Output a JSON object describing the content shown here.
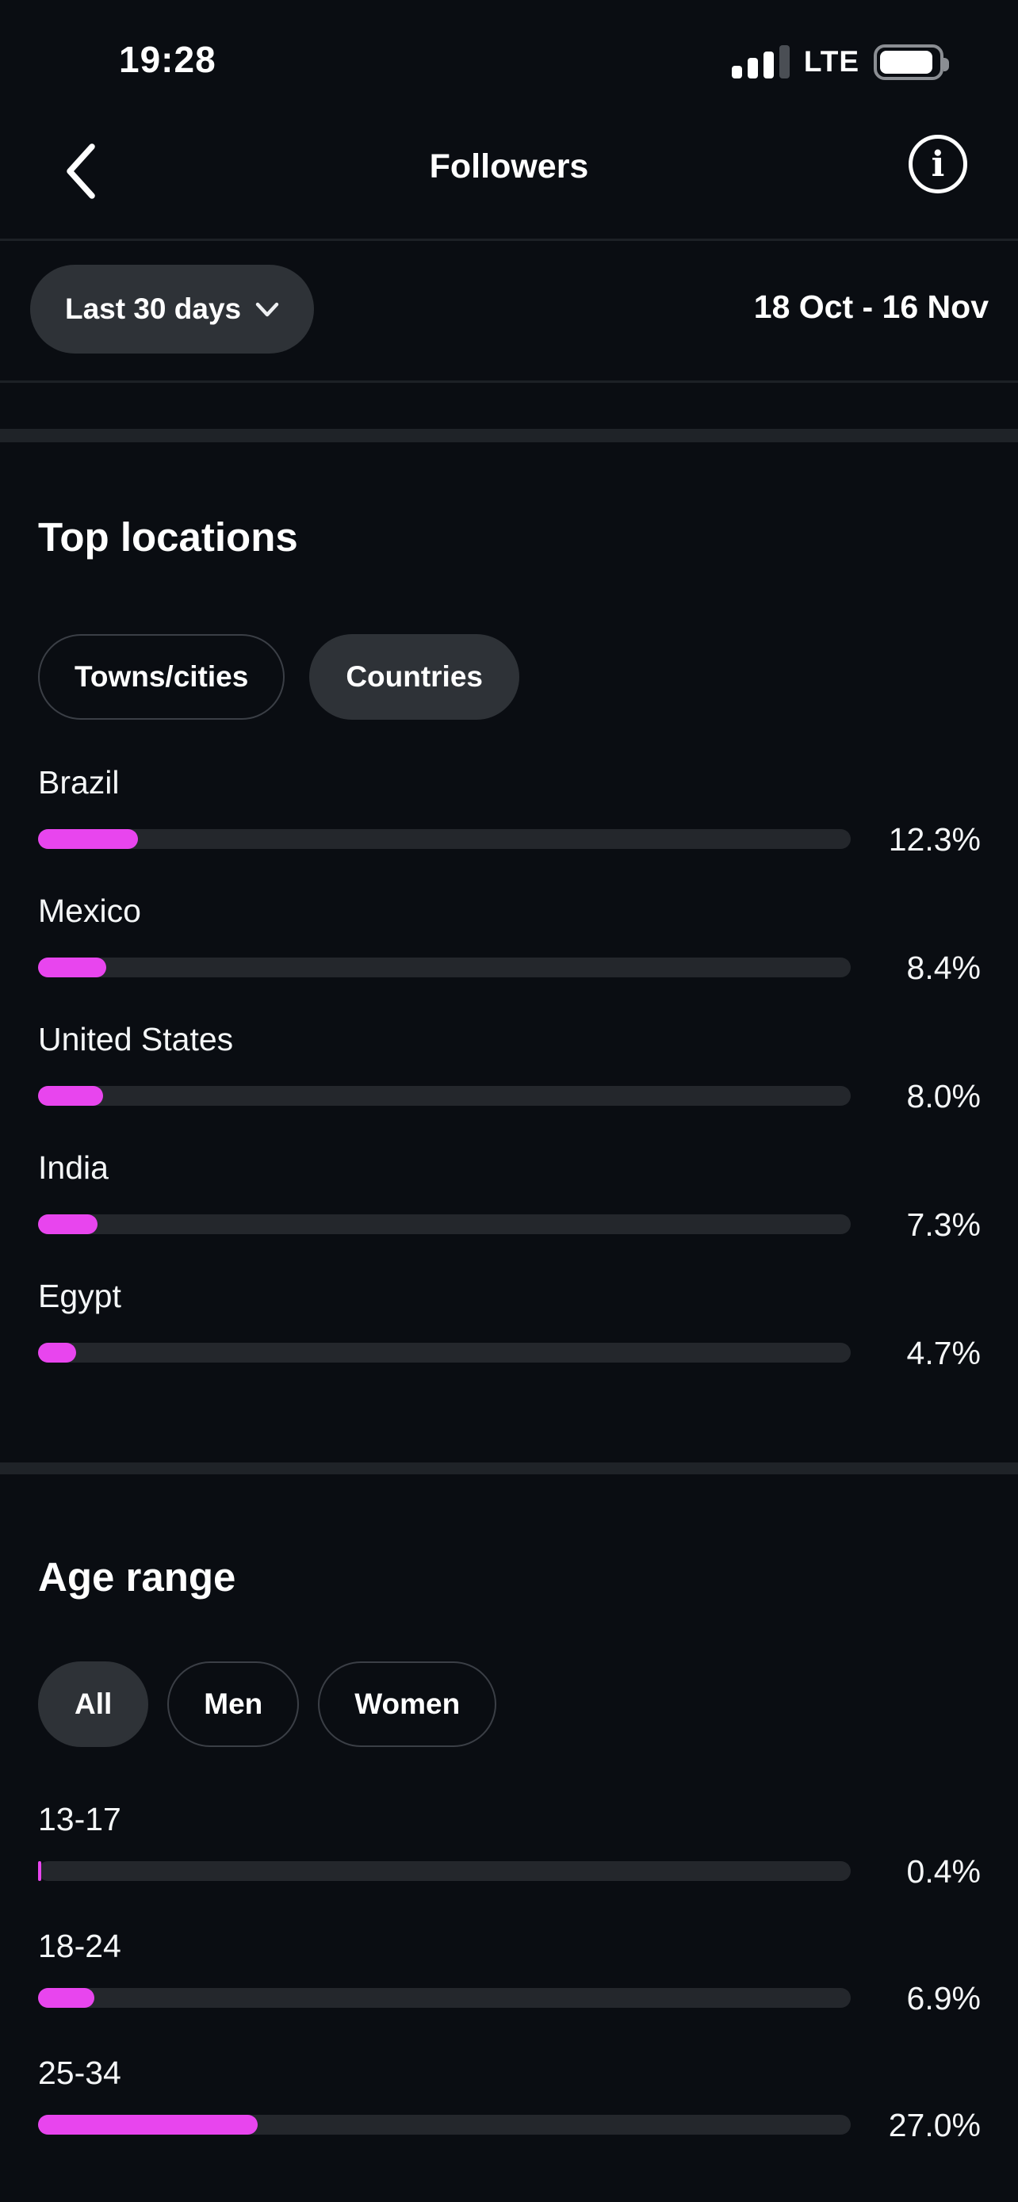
{
  "colors": {
    "background": "#0a0d12",
    "accent_bar": "#e845ee",
    "bar_track": "#24272c",
    "pill_fill": "#2e3237",
    "pill_border": "#3b3f46"
  },
  "status_bar": {
    "time": "19:28",
    "network": "LTE",
    "icons": [
      "cellular-signal-icon",
      "battery-icon"
    ]
  },
  "header": {
    "title": "Followers",
    "back_icon": "chevron-left-icon",
    "info_icon": "info-circle-icon",
    "info_glyph": "i"
  },
  "filter": {
    "range_label": "Last 30 days",
    "dropdown_icon": "chevron-down-icon",
    "date_range": "18 Oct - 16 Nov"
  },
  "top_locations": {
    "title": "Top locations",
    "tabs": [
      {
        "label": "Towns/cities",
        "selected": false
      },
      {
        "label": "Countries",
        "selected": true
      }
    ],
    "rows": [
      {
        "label": "Brazil",
        "value": "12.3%",
        "pct": 12.3
      },
      {
        "label": "Mexico",
        "value": "8.4%",
        "pct": 8.4
      },
      {
        "label": "United States",
        "value": "8.0%",
        "pct": 8.0
      },
      {
        "label": "India",
        "value": "7.3%",
        "pct": 7.3
      },
      {
        "label": "Egypt",
        "value": "4.7%",
        "pct": 4.7
      }
    ]
  },
  "age_range": {
    "title": "Age range",
    "tabs": [
      {
        "label": "All",
        "selected": true
      },
      {
        "label": "Men",
        "selected": false
      },
      {
        "label": "Women",
        "selected": false
      }
    ],
    "rows": [
      {
        "label": "13-17",
        "value": "0.4%",
        "pct": 0.4
      },
      {
        "label": "18-24",
        "value": "6.9%",
        "pct": 6.9
      },
      {
        "label": "25-34",
        "value": "27.0%",
        "pct": 27.0
      }
    ]
  }
}
